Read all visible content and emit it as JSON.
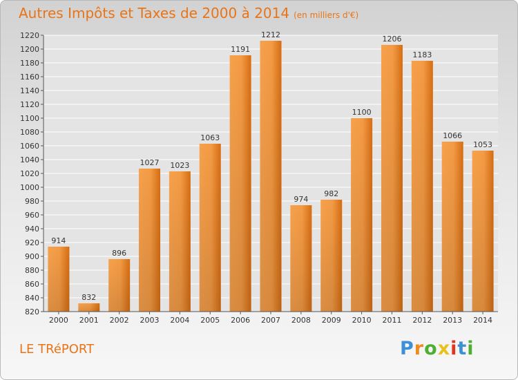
{
  "title": "Autres Impôts et Taxes de 2000 à 2014",
  "subtitle": "(en milliers d'€)",
  "place": "LE TRéPORT",
  "logo": {
    "letters": [
      "P",
      "r",
      "o",
      "x",
      "i",
      "t",
      "i"
    ],
    "colors": [
      "#3d8fd6",
      "#f08a1c",
      "#4caf32",
      "#e8c21c",
      "#e0341c",
      "#3d8fd6",
      "#4caf32"
    ]
  },
  "colors": {
    "bar_light": "#f7a14c",
    "bar_dark": "#d66d12",
    "title": "#e87418",
    "grid": "#ffffff"
  },
  "chart_data": {
    "type": "bar",
    "categories": [
      "2000",
      "2001",
      "2002",
      "2003",
      "2004",
      "2005",
      "2006",
      "2007",
      "2008",
      "2009",
      "2010",
      "2011",
      "2012",
      "2013",
      "2014"
    ],
    "values": [
      914,
      832,
      896,
      1027,
      1023,
      1063,
      1191,
      1212,
      974,
      982,
      1100,
      1206,
      1183,
      1066,
      1053
    ],
    "ylim": [
      820,
      1220
    ],
    "ytick_step": 20,
    "grid": true
  }
}
